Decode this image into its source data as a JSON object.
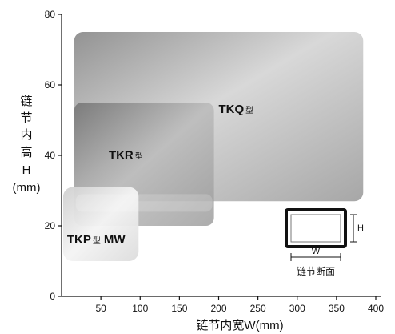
{
  "chart_data": {
    "type": "area",
    "xlabel": "链节内宽W(mm)",
    "ylabel": [
      "链",
      "节",
      "内",
      "高",
      "H",
      "(mm)"
    ],
    "x_ticks": [
      50,
      100,
      150,
      200,
      250,
      300,
      350,
      400
    ],
    "y_ticks": [
      0,
      20,
      40,
      60,
      80
    ],
    "xlim": [
      0,
      400
    ],
    "ylim": [
      0,
      80
    ],
    "grid": false,
    "series": [
      {
        "name": "TKQ",
        "suffix": "型",
        "w_range": [
          16,
          384
        ],
        "h_range": [
          27,
          75
        ],
        "color": "#9c9c9c",
        "label_at": [
          200,
          52
        ]
      },
      {
        "name": "TKR",
        "suffix": "型",
        "w_range": [
          16,
          194
        ],
        "h_range": [
          20,
          55
        ],
        "color": "#858585",
        "label_at": [
          60,
          39
        ]
      },
      {
        "name": "TKP",
        "suffix": "型",
        "extra": "MW",
        "w_range": [
          2,
          98
        ],
        "h_range": [
          10,
          31
        ],
        "color": "#e0e0e0",
        "label_at": [
          7,
          15
        ]
      }
    ],
    "inset": {
      "width_label": "W",
      "height_label": "H",
      "caption": "链节断面"
    }
  }
}
